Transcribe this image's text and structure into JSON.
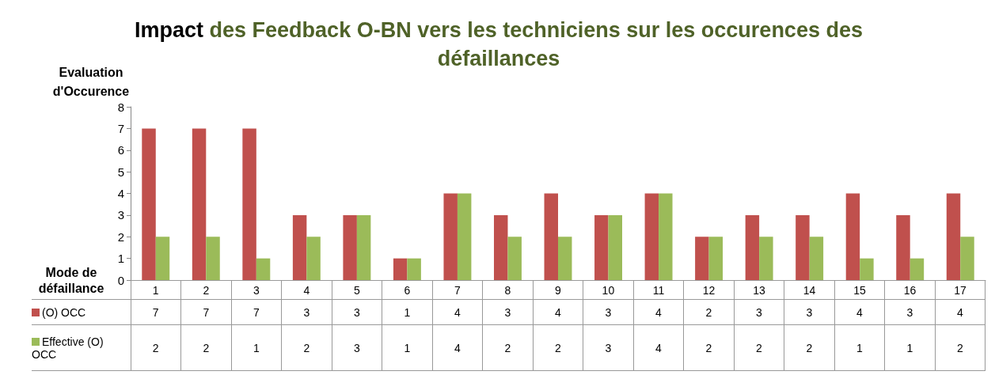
{
  "chart_data": {
    "type": "bar",
    "title": "Impact des Feedback O-BN vers les techniciens sur les occurences des défaillances",
    "xlabel": "Mode de défaillance",
    "ylabel": "Evaluation d'Occurence",
    "categories": [
      "1",
      "2",
      "3",
      "4",
      "5",
      "6",
      "7",
      "8",
      "9",
      "10",
      "11",
      "12",
      "13",
      "14",
      "15",
      "16",
      "17"
    ],
    "series": [
      {
        "name": "(O) OCC",
        "color": "#c0504d",
        "values": [
          7,
          7,
          7,
          3,
          3,
          1,
          4,
          3,
          4,
          3,
          4,
          2,
          3,
          3,
          4,
          3,
          4
        ]
      },
      {
        "name": "Effective (O) OCC",
        "color": "#9bbb59",
        "values": [
          2,
          2,
          1,
          2,
          3,
          1,
          4,
          2,
          2,
          3,
          4,
          2,
          2,
          2,
          1,
          1,
          2
        ]
      }
    ],
    "ylim": [
      0,
      8
    ],
    "yticks": [
      0,
      1,
      2,
      3,
      4,
      5,
      6,
      7,
      8
    ],
    "grid": false,
    "legend": "bottom left",
    "data_labels": true
  }
}
